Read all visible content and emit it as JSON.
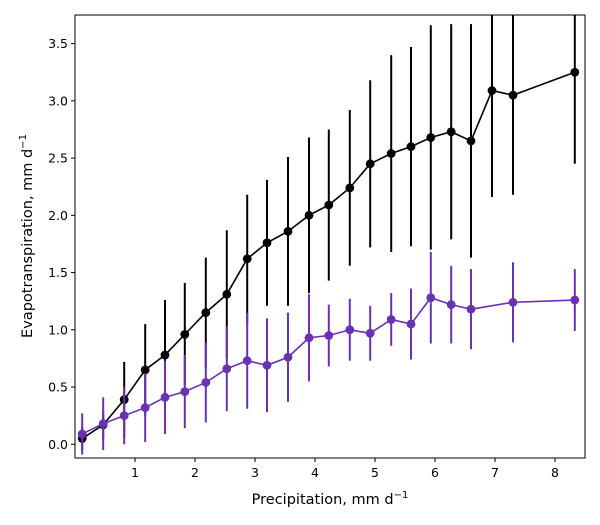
{
  "chart_data": {
    "type": "line",
    "xlabel": "Precipitation,  mm d",
    "xlabel_sup": "−1",
    "ylabel": "Evapotranspiration,  mm d",
    "ylabel_sup": "−1",
    "xlim": [
      0.0,
      8.5
    ],
    "ylim": [
      -0.12,
      3.75
    ],
    "xticks": [
      1,
      2,
      3,
      4,
      5,
      6,
      7,
      8
    ],
    "yticks": [
      0.0,
      0.5,
      1.0,
      1.5,
      2.0,
      2.5,
      3.0,
      3.5
    ],
    "ytick_labels": [
      "0.0",
      "0.5",
      "1.0",
      "1.5",
      "2.0",
      "2.5",
      "3.0",
      "3.5"
    ],
    "grid": false,
    "series": [
      {
        "color": "#000000",
        "x": [
          0.12,
          0.47,
          0.82,
          1.17,
          1.5,
          1.83,
          2.18,
          2.53,
          2.87,
          3.2,
          3.55,
          3.9,
          4.23,
          4.58,
          4.92,
          5.27,
          5.6,
          5.93,
          6.27,
          6.6,
          6.95,
          7.3,
          8.33
        ],
        "y": [
          0.05,
          0.17,
          0.39,
          0.65,
          0.78,
          0.96,
          1.15,
          1.31,
          1.62,
          1.76,
          1.86,
          2.0,
          2.09,
          2.24,
          2.45,
          2.54,
          2.6,
          2.68,
          2.73,
          2.65,
          3.09,
          3.05,
          3.25
        ],
        "yerr": [
          0.1,
          0.12,
          0.33,
          0.4,
          0.48,
          0.45,
          0.48,
          0.56,
          0.56,
          0.55,
          0.65,
          0.68,
          0.66,
          0.68,
          0.73,
          0.86,
          0.87,
          0.98,
          0.94,
          1.02,
          0.93,
          0.87,
          0.8
        ]
      },
      {
        "color": "#6a32b0",
        "x": [
          0.12,
          0.47,
          0.82,
          1.17,
          1.5,
          1.83,
          2.18,
          2.53,
          2.87,
          3.2,
          3.55,
          3.9,
          4.23,
          4.58,
          4.92,
          5.27,
          5.6,
          5.93,
          6.27,
          6.6,
          7.3,
          8.33
        ],
        "y": [
          0.09,
          0.18,
          0.25,
          0.32,
          0.41,
          0.46,
          0.54,
          0.66,
          0.73,
          0.69,
          0.76,
          0.93,
          0.95,
          1.0,
          0.97,
          1.09,
          1.05,
          1.28,
          1.22,
          1.18,
          1.24,
          1.26
        ],
        "yerr": [
          0.18,
          0.23,
          0.25,
          0.3,
          0.32,
          0.32,
          0.35,
          0.37,
          0.42,
          0.41,
          0.39,
          0.38,
          0.27,
          0.27,
          0.24,
          0.23,
          0.31,
          0.4,
          0.34,
          0.35,
          0.35,
          0.27
        ]
      }
    ]
  }
}
